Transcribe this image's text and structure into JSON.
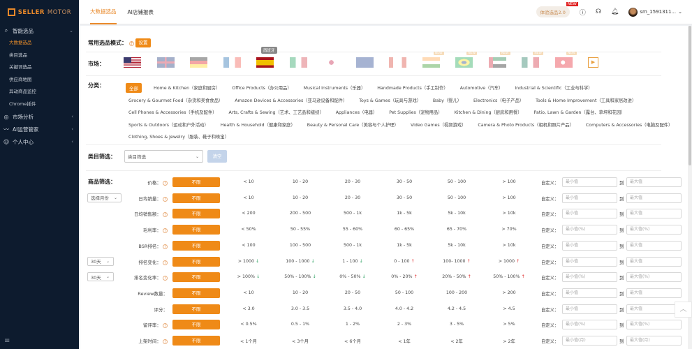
{
  "brand": {
    "name_a": "SELLER",
    "name_b": "MOTOR",
    "accent": "#ef8a17"
  },
  "sidebar": {
    "groups": [
      {
        "label": "智能选品",
        "icon": "search-icon",
        "expanded": true,
        "items": [
          {
            "label": "大数据选品",
            "active": true
          },
          {
            "label": "类目选品"
          },
          {
            "label": "关键词选品"
          },
          {
            "label": "供应商地图"
          },
          {
            "label": "异动商品监控"
          },
          {
            "label": "Chrome插件"
          }
        ]
      },
      {
        "label": "市场分析",
        "icon": "compass-icon"
      },
      {
        "label": "AI运营管家",
        "icon": "trend-icon"
      },
      {
        "label": "个人中心",
        "icon": "user-icon"
      }
    ]
  },
  "topbar": {
    "tabs": [
      {
        "label": "大数据选品",
        "active": true
      },
      {
        "label": "AI店铺报表"
      }
    ],
    "trial": "体验选品2.0",
    "trial_badge": "NEW",
    "username": "sm_1591311..."
  },
  "mode": {
    "label": "常用选品模式：",
    "button": "设置"
  },
  "market": {
    "label": "市场：",
    "tooltip": "西班牙",
    "badge": "NEW",
    "flags": [
      {
        "code": "us",
        "active": true
      },
      {
        "code": "uk"
      },
      {
        "code": "de"
      },
      {
        "code": "fr"
      },
      {
        "code": "es",
        "active": true
      },
      {
        "code": "it"
      },
      {
        "code": "jp"
      },
      {
        "code": "au"
      },
      {
        "code": "ca"
      },
      {
        "code": "in",
        "new": true
      },
      {
        "code": "br",
        "new": true
      },
      {
        "code": "ae",
        "new": true
      },
      {
        "code": "mx",
        "new": true
      },
      {
        "code": "tr",
        "new": true
      },
      {
        "code": "video"
      }
    ]
  },
  "category": {
    "label": "分类：",
    "all": "全部",
    "rows": [
      [
        "Home & Kitchen（家庭和厨房）",
        "Office Products（办公用品）",
        "Musical Instruments（乐器）",
        "Handmade Products（手工制作）",
        "Automotive（汽车）",
        "Industrial & Scientific（工业与科学）"
      ],
      [
        "Grocery & Gourmet Food（杂货和美食食品）",
        "Amazon Devices & Accessories（亚马逊设备和配件）",
        "Toys & Games（玩具与游戏）",
        "Baby（婴儿）",
        "Electronics（电子产品）",
        "Tools & Home Improvement（工具和家居改进）"
      ],
      [
        "Cell Phones & Accessories（手机及配件）",
        "Arts, Crafts & Sewing（艺术、工艺品和缝纫）",
        "Appliances（电器）",
        "Pet Supplies（宠物用品）",
        "Kitchen & Dining（厨房和用餐）",
        "Patio, Lawn & Garden（露台、草坪和花园）"
      ],
      [
        "Sports & Outdoors（运动和户外活动）",
        "Health & Household（健康和家庭）",
        "Beauty & Personal Care（美容与个人护理）",
        "Video Games（视频游戏）",
        "Camera & Photo Products（相机和照片产品）",
        "Computers & Accessories（电脑及配件）"
      ],
      [
        "Clothing, Shoes & Jewelry（服装、鞋子和珠宝）"
      ]
    ]
  },
  "category_filter": {
    "label": "类目筛选：",
    "placeholder": "类目筛选",
    "clear": "清空"
  },
  "product_filter": {
    "label": "商品筛选：",
    "any": "不限",
    "custom": "自定义：",
    "to": "到",
    "rows": [
      {
        "label": "价格：",
        "help": true,
        "options": [
          "< 10",
          "10 - 20",
          "20 - 30",
          "30 - 50",
          "50 - 100",
          "> 100"
        ],
        "min": "最小值",
        "max": "最大值"
      },
      {
        "label": "日均销量：",
        "help": true,
        "select": "选择月份",
        "options": [
          "< 10",
          "10 - 20",
          "20 - 30",
          "30 - 50",
          "50 - 100",
          "> 100"
        ],
        "min": "最小值",
        "max": "最大值"
      },
      {
        "label": "日均销售额：",
        "help": true,
        "options": [
          "< 200",
          "200 - 500",
          "500 - 1k",
          "1k - 5k",
          "5k - 10k",
          "> 10k"
        ],
        "min": "最小值",
        "max": "最大值"
      },
      {
        "label": "毛利率：",
        "help": true,
        "options": [
          "< 50%",
          "50 - 55%",
          "55 - 60%",
          "60 - 65%",
          "65 - 70%",
          "> 70%"
        ],
        "min": "最小值(%)",
        "max": "最大值(%)"
      },
      {
        "label": "BSR排名：",
        "help": true,
        "options": [
          "< 100",
          "100 - 500",
          "500 - 1k",
          "1k - 5k",
          "5k - 10k",
          "> 10k"
        ],
        "min": "最小值",
        "max": "最大值"
      },
      {
        "label": "排名变化：",
        "help": true,
        "select": "30天",
        "options": [
          "> 1000",
          "100 - 1000",
          "1 - 100",
          "0 - 100",
          "100- 1000",
          "> 1000"
        ],
        "arrows": [
          "down",
          "down",
          "down",
          "up",
          "up",
          "up"
        ],
        "min": "最小值",
        "max": "最大值"
      },
      {
        "label": "排名变化率：",
        "help": true,
        "select": "30天",
        "options": [
          "> 100%",
          "50% - 100%",
          "0% - 50%",
          "0% - 20%",
          "20% - 50%",
          "50% - 100%"
        ],
        "arrows": [
          "down",
          "down",
          "down",
          "up",
          "up",
          "up"
        ],
        "min": "最小值(%)",
        "max": "最大值(%)"
      },
      {
        "label": "Review数量：",
        "options": [
          "< 10",
          "10 - 20",
          "20 - 50",
          "50 - 100",
          "100 - 200",
          "> 200"
        ],
        "min": "最小值",
        "max": "最大值"
      },
      {
        "label": "评分：",
        "options": [
          "< 3.0",
          "3.0 - 3.5",
          "3.5 - 4.0",
          "4.0 - 4.2",
          "4.2 - 4.5",
          "> 4.5"
        ],
        "min": "最小值",
        "max": "最大值"
      },
      {
        "label": "留评率：",
        "help": true,
        "options": [
          "< 0.5%",
          "0.5 - 1%",
          "1 - 2%",
          "2 - 3%",
          "3 - 5%",
          "> 5%"
        ],
        "min": "最小值(%)",
        "max": "最大值(%)"
      },
      {
        "label": "上架时间：",
        "help": true,
        "options": [
          "< 1个月",
          "< 3个月",
          "< 6个月",
          "< 1年",
          "< 2年",
          "> 2年"
        ],
        "min": "最小值(月)",
        "max": "最大值(月)"
      }
    ]
  }
}
